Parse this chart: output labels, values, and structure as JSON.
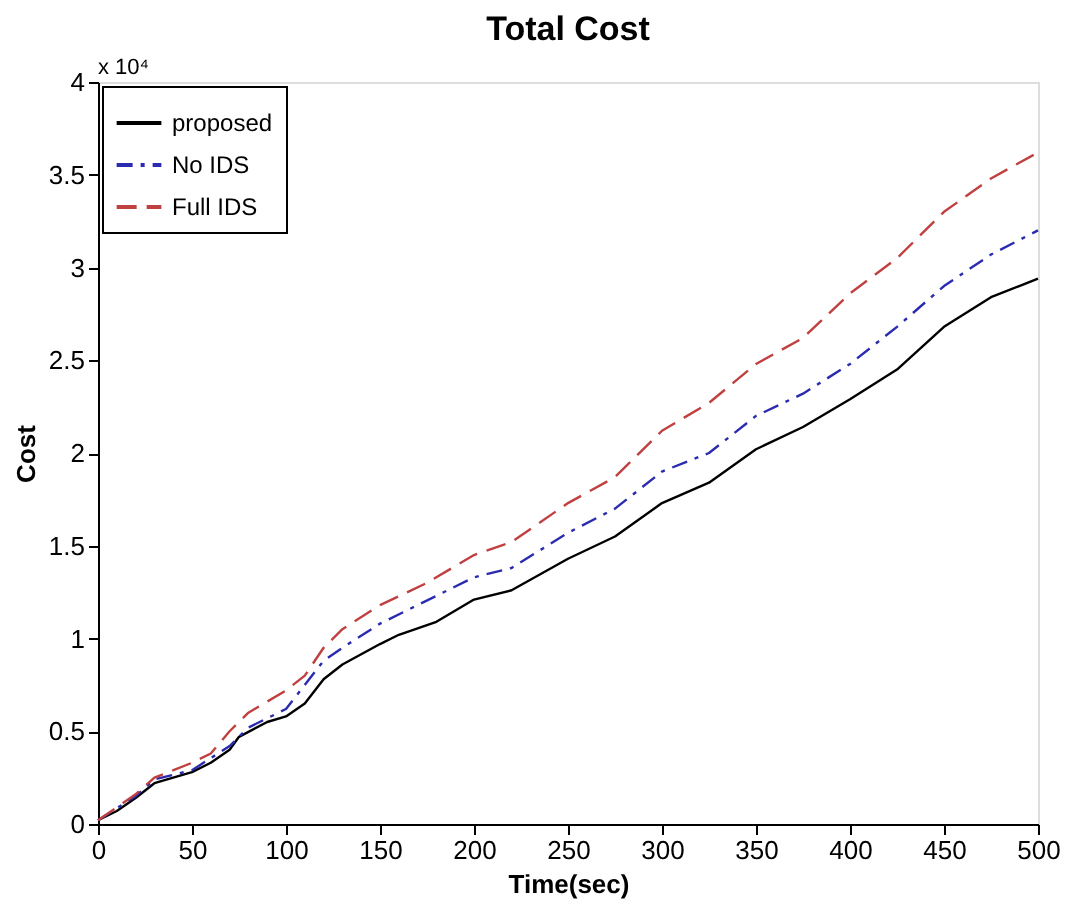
{
  "chart_data": {
    "type": "line",
    "title": "Total Cost",
    "xlabel": "Time(sec)",
    "ylabel": "Cost",
    "annotations": [
      "x 10⁴"
    ],
    "xlim": [
      0,
      500
    ],
    "xticks": [
      0,
      50,
      100,
      150,
      200,
      250,
      300,
      350,
      400,
      450,
      500
    ],
    "ylim": [
      0,
      4
    ],
    "yticks": [
      0,
      0.5,
      1,
      1.5,
      2,
      2.5,
      3,
      3.5,
      4
    ],
    "grid": false,
    "legend": "top left",
    "marker": "none",
    "series": [
      {
        "name": "proposed",
        "color": "#000000",
        "line_style": "solid",
        "x": [
          0,
          10,
          20,
          30,
          40,
          50,
          60,
          70,
          75,
          90,
          100,
          110,
          120,
          130,
          150,
          160,
          180,
          200,
          220,
          250,
          275,
          300,
          325,
          350,
          375,
          400,
          425,
          450,
          475,
          490,
          500
        ],
        "values": [
          0.02,
          0.07,
          0.14,
          0.22,
          0.25,
          0.28,
          0.33,
          0.4,
          0.47,
          0.55,
          0.58,
          0.65,
          0.78,
          0.86,
          0.97,
          1.02,
          1.09,
          1.21,
          1.26,
          1.43,
          1.55,
          1.73,
          1.84,
          2.02,
          2.14,
          2.29,
          2.45,
          2.68,
          2.84,
          2.9,
          2.94
        ]
      },
      {
        "name": "No IDS",
        "color": "#2b2bb0",
        "line_style": "dashdot",
        "x": [
          0,
          20,
          30,
          50,
          70,
          80,
          100,
          120,
          130,
          150,
          200,
          220,
          250,
          275,
          300,
          325,
          350,
          375,
          400,
          425,
          450,
          475,
          500
        ],
        "values": [
          0.02,
          0.15,
          0.24,
          0.29,
          0.42,
          0.52,
          0.62,
          0.88,
          0.95,
          1.08,
          1.33,
          1.38,
          1.57,
          1.7,
          1.9,
          2.0,
          2.2,
          2.32,
          2.48,
          2.68,
          2.9,
          3.07,
          3.2
        ]
      },
      {
        "name": "Full IDS",
        "color": "#c04040",
        "line_style": "dashed",
        "x": [
          0,
          20,
          30,
          50,
          60,
          70,
          80,
          100,
          110,
          120,
          130,
          150,
          175,
          200,
          220,
          250,
          275,
          300,
          325,
          350,
          375,
          400,
          425,
          450,
          475,
          500
        ],
        "values": [
          0.02,
          0.16,
          0.25,
          0.33,
          0.38,
          0.5,
          0.6,
          0.72,
          0.8,
          0.95,
          1.05,
          1.18,
          1.3,
          1.45,
          1.52,
          1.73,
          1.87,
          2.12,
          2.27,
          2.48,
          2.62,
          2.86,
          3.05,
          3.3,
          3.48,
          3.62
        ]
      }
    ]
  }
}
